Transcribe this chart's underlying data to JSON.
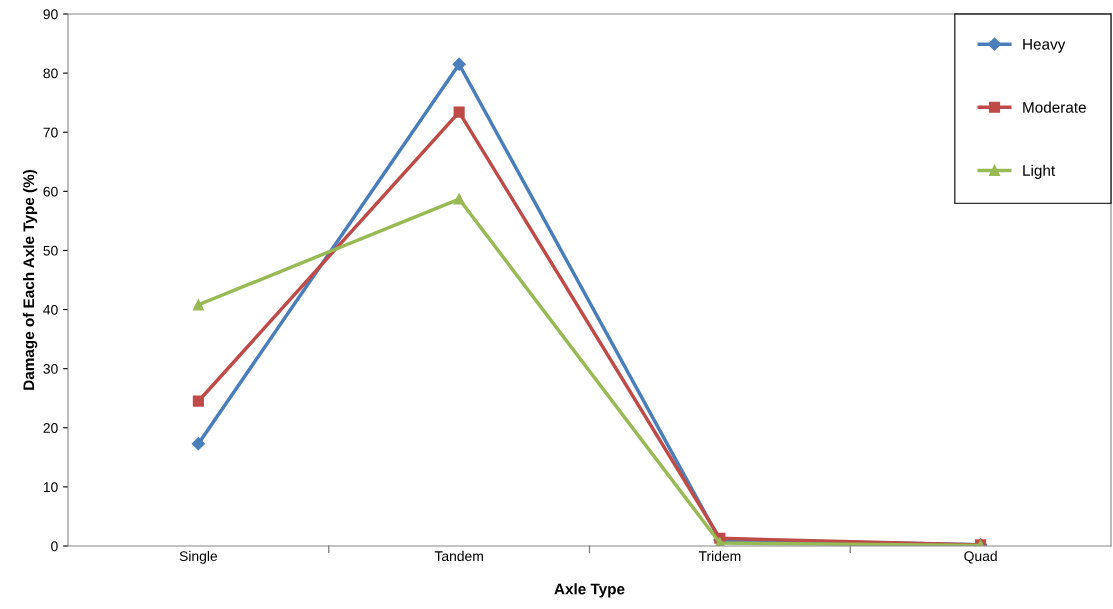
{
  "chart_data": {
    "type": "line",
    "xlabel": "Axle Type",
    "ylabel": "Damage of Each Axle Type (%)",
    "categories": [
      "Single",
      "Tandem",
      "Tridem",
      "Quad"
    ],
    "series": [
      {
        "name": "Heavy",
        "color": "#4a7ebb",
        "marker": "diamond",
        "values": [
          17.3,
          81.5,
          1.0,
          0.2
        ]
      },
      {
        "name": "Moderate",
        "color": "#be4b48",
        "marker": "square",
        "values": [
          24.5,
          73.4,
          1.3,
          0.2
        ]
      },
      {
        "name": "Light",
        "color": "#98b954",
        "marker": "triangle",
        "values": [
          40.8,
          58.7,
          0.5,
          0.1
        ]
      }
    ],
    "ylim": [
      0,
      90
    ],
    "yticks": [
      0,
      10,
      20,
      30,
      40,
      50,
      60,
      70,
      80,
      90
    ],
    "grid": false,
    "legend": "top right"
  }
}
